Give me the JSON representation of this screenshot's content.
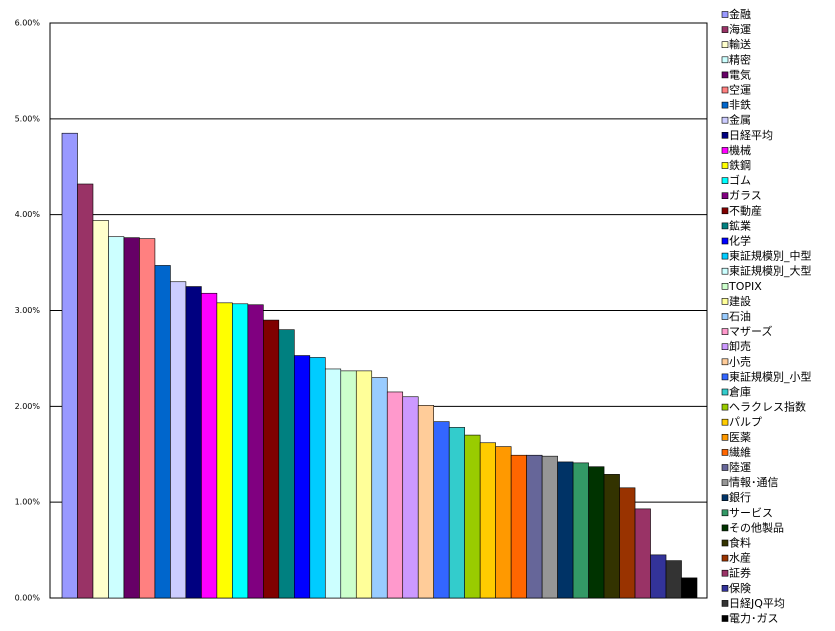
{
  "chart_data": {
    "type": "bar",
    "categories": [
      "金融",
      "海運",
      "輸送",
      "精密",
      "電気",
      "空運",
      "非鉄",
      "金属",
      "日経平均",
      "機械",
      "鉄鋼",
      "ゴム",
      "ガラス",
      "不動産",
      "鉱業",
      "化学",
      "東証規模別_中型",
      "東証規模別_大型",
      "TOPIX",
      "建設",
      "石油",
      "マザーズ",
      "卸売",
      "小売",
      "東証規模別_小型",
      "倉庫",
      "ヘラクレス指数",
      "パルプ",
      "医薬",
      "繊維",
      "陸運",
      "情報･通信",
      "銀行",
      "サービス",
      "その他製品",
      "食料",
      "水産",
      "証券",
      "保険",
      "日経JQ平均",
      "電力･ガス"
    ],
    "values": [
      4.85,
      4.32,
      3.94,
      3.77,
      3.76,
      3.75,
      3.47,
      3.3,
      3.25,
      3.18,
      3.08,
      3.07,
      3.06,
      2.9,
      2.8,
      2.53,
      2.51,
      2.39,
      2.37,
      2.37,
      2.3,
      2.15,
      2.1,
      2.01,
      1.84,
      1.78,
      1.7,
      1.62,
      1.58,
      1.49,
      1.49,
      1.48,
      1.42,
      1.41,
      1.37,
      1.29,
      1.15,
      0.93,
      0.45,
      0.39,
      0.21
    ],
    "colors": [
      "#9999ff",
      "#993366",
      "#ffffcc",
      "#ccffff",
      "#660066",
      "#ff8080",
      "#0066cc",
      "#ccccff",
      "#000080",
      "#ff00ff",
      "#ffff00",
      "#00ffff",
      "#800080",
      "#800000",
      "#008080",
      "#0000ff",
      "#00ccff",
      "#ccffff",
      "#ccffcc",
      "#ffff99",
      "#99ccff",
      "#ff99cc",
      "#cc99ff",
      "#ffcc99",
      "#3366ff",
      "#33cccc",
      "#99cc00",
      "#ffcc00",
      "#ff9900",
      "#ff6600",
      "#666699",
      "#969696",
      "#003366",
      "#339966",
      "#003300",
      "#333300",
      "#993300",
      "#993366",
      "#333399",
      "#333333",
      "#000000"
    ],
    "ylim": [
      0,
      6
    ],
    "yticks": [
      {
        "value": 0,
        "label": "0.00%"
      },
      {
        "value": 1,
        "label": "1.00%"
      },
      {
        "value": 2,
        "label": "2.00%"
      },
      {
        "value": 3,
        "label": "3.00%"
      },
      {
        "value": 4,
        "label": "4.00%"
      },
      {
        "value": 5,
        "label": "5.00%"
      },
      {
        "value": 6,
        "label": "6.00%"
      }
    ],
    "grid": true,
    "legend": "right"
  }
}
